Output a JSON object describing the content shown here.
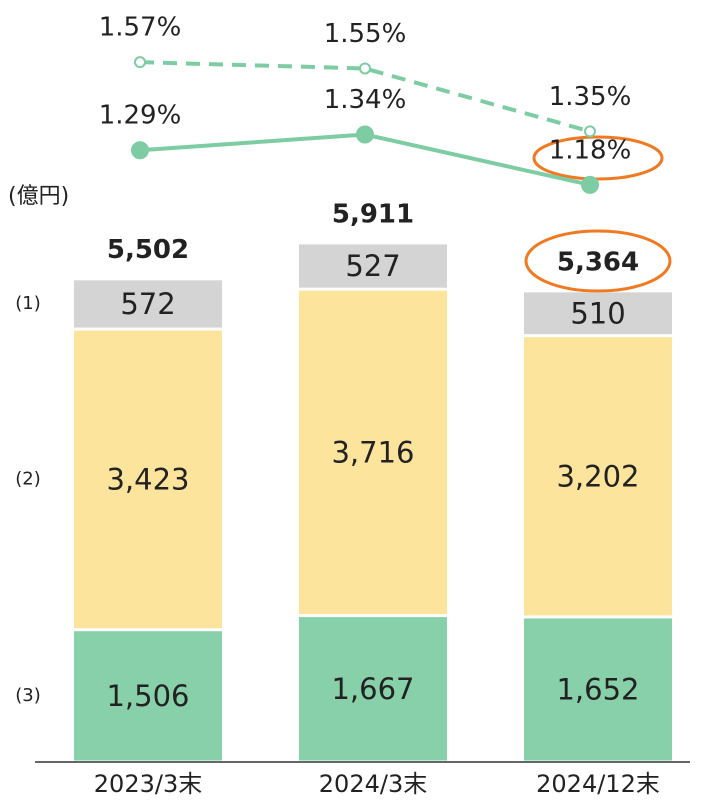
{
  "chart_data": [
    {
      "type": "bar",
      "stacked": true,
      "unit": "(億円)",
      "categories": [
        "2023/3末",
        "2024/3末",
        "2024/12末"
      ],
      "series": [
        {
          "name": "(3)",
          "color": "#88d0aa",
          "values": [
            1506,
            1667,
            1652
          ],
          "value_labels": [
            "1,506",
            "1,667",
            "1,652"
          ]
        },
        {
          "name": "(2)",
          "color": "#fde49c",
          "values": [
            3423,
            3716,
            3202
          ],
          "value_labels": [
            "3,423",
            "3,716",
            "3,202"
          ]
        },
        {
          "name": "(1)",
          "color": "#d4d4d4",
          "values": [
            572,
            527,
            510
          ],
          "value_labels": [
            "572",
            "527",
            "510"
          ]
        }
      ],
      "totals": [
        5502,
        5911,
        5364
      ],
      "total_labels": [
        "5,502",
        "5,911",
        "5,364"
      ],
      "ylim": [
        0,
        6000
      ]
    },
    {
      "type": "line",
      "series": [
        {
          "color": "#7dcca3",
          "dashed": true,
          "marker": "open",
          "values": [
            1.57,
            1.55,
            1.35
          ],
          "value_labels": [
            "1.57%",
            "1.55%",
            "1.35%"
          ]
        },
        {
          "color": "#7dcca3",
          "dashed": false,
          "marker": "filled",
          "values": [
            1.29,
            1.34,
            1.18
          ],
          "value_labels": [
            "1.29%",
            "1.34%",
            "1.18%"
          ]
        }
      ],
      "ylim": [
        1.1,
        1.65
      ]
    }
  ]
}
